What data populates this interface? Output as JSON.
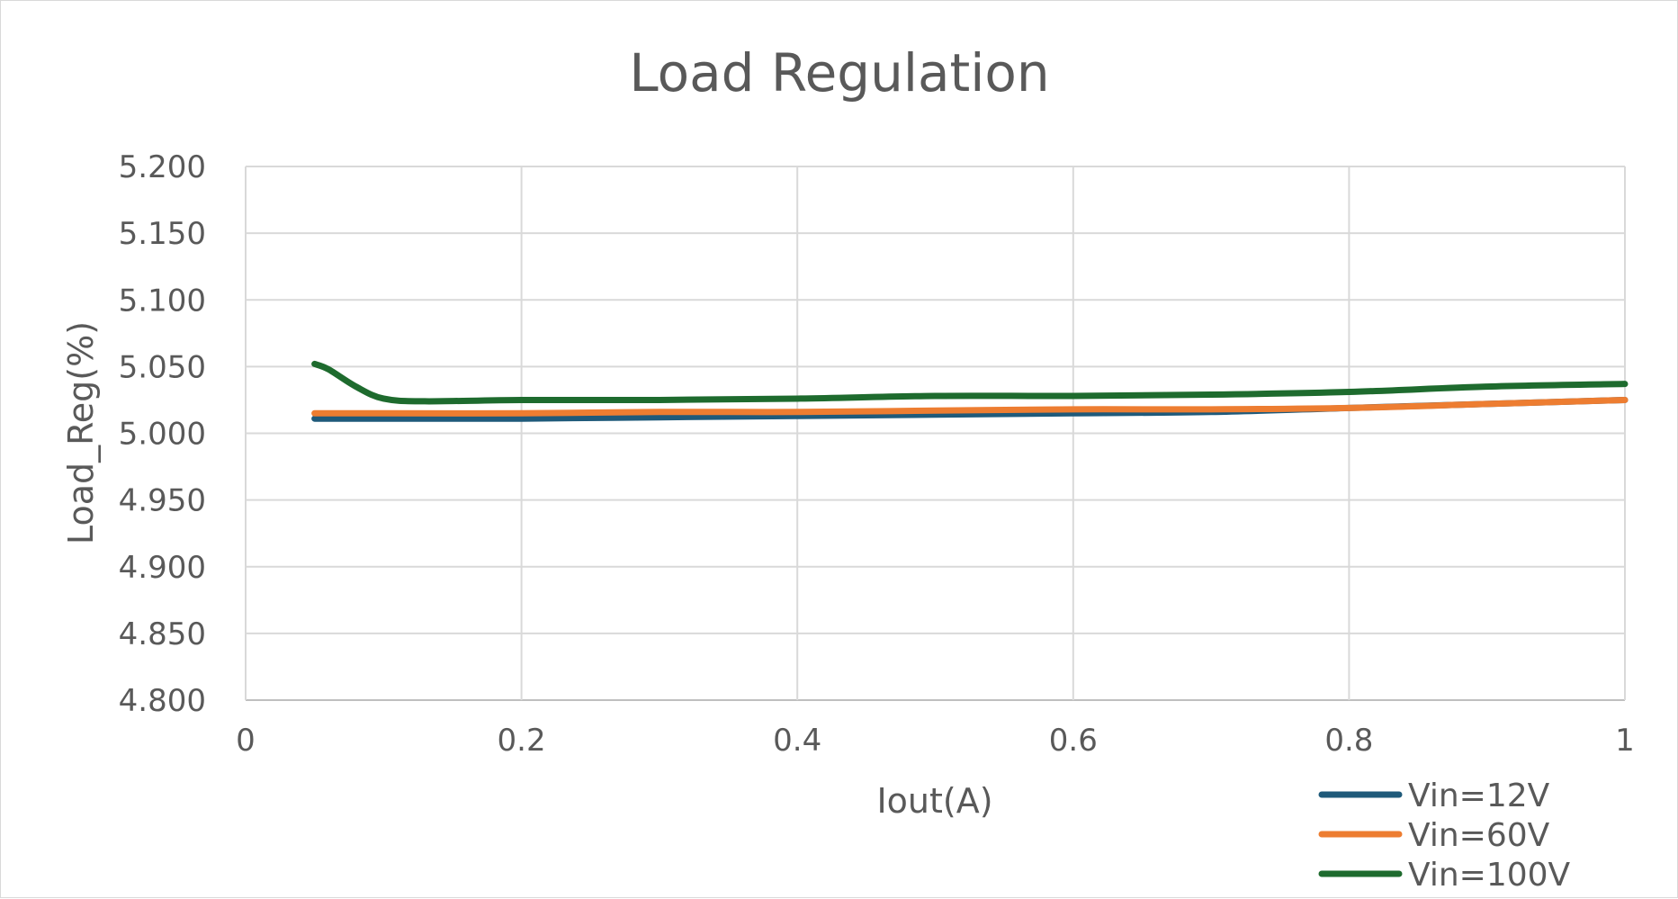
{
  "chart_data": {
    "type": "line",
    "title": "Load Regulation",
    "xlabel": "Iout(A)",
    "ylabel": "Load_Reg(%)",
    "xlim": [
      0,
      1
    ],
    "ylim": [
      4.8,
      5.2
    ],
    "x_ticks": [
      "0",
      "0.2",
      "0.4",
      "0.6",
      "0.8",
      "1"
    ],
    "x_tick_values": [
      0,
      0.2,
      0.4,
      0.6,
      0.8,
      1
    ],
    "y_ticks": [
      "5.200",
      "5.150",
      "5.100",
      "5.050",
      "5.000",
      "4.950",
      "4.900",
      "4.850",
      "4.800"
    ],
    "y_tick_values": [
      5.2,
      5.15,
      5.1,
      5.05,
      5.0,
      4.95,
      4.9,
      4.85,
      4.8
    ],
    "grid": true,
    "legend_position": "bottom-right",
    "series": [
      {
        "name": "Vin=12V",
        "color": "#1f5a7a",
        "x": [
          0.05,
          0.1,
          0.2,
          0.3,
          0.4,
          0.5,
          0.6,
          0.7,
          0.8,
          0.9,
          1.0
        ],
        "y": [
          5.011,
          5.011,
          5.011,
          5.012,
          5.013,
          5.014,
          5.015,
          5.016,
          5.019,
          5.022,
          5.025
        ]
      },
      {
        "name": "Vin=60V",
        "color": "#ed7d31",
        "x": [
          0.05,
          0.1,
          0.2,
          0.3,
          0.4,
          0.5,
          0.6,
          0.7,
          0.8,
          0.9,
          1.0
        ],
        "y": [
          5.015,
          5.015,
          5.015,
          5.016,
          5.016,
          5.017,
          5.018,
          5.018,
          5.019,
          5.022,
          5.025
        ]
      },
      {
        "name": "Vin=100V",
        "color": "#1e6b2e",
        "x": [
          0.05,
          0.06,
          0.08,
          0.1,
          0.13,
          0.2,
          0.3,
          0.4,
          0.5,
          0.6,
          0.7,
          0.8,
          0.9,
          1.0
        ],
        "y": [
          5.052,
          5.048,
          5.035,
          5.026,
          5.024,
          5.025,
          5.025,
          5.026,
          5.028,
          5.028,
          5.029,
          5.031,
          5.035,
          5.037
        ]
      }
    ]
  }
}
